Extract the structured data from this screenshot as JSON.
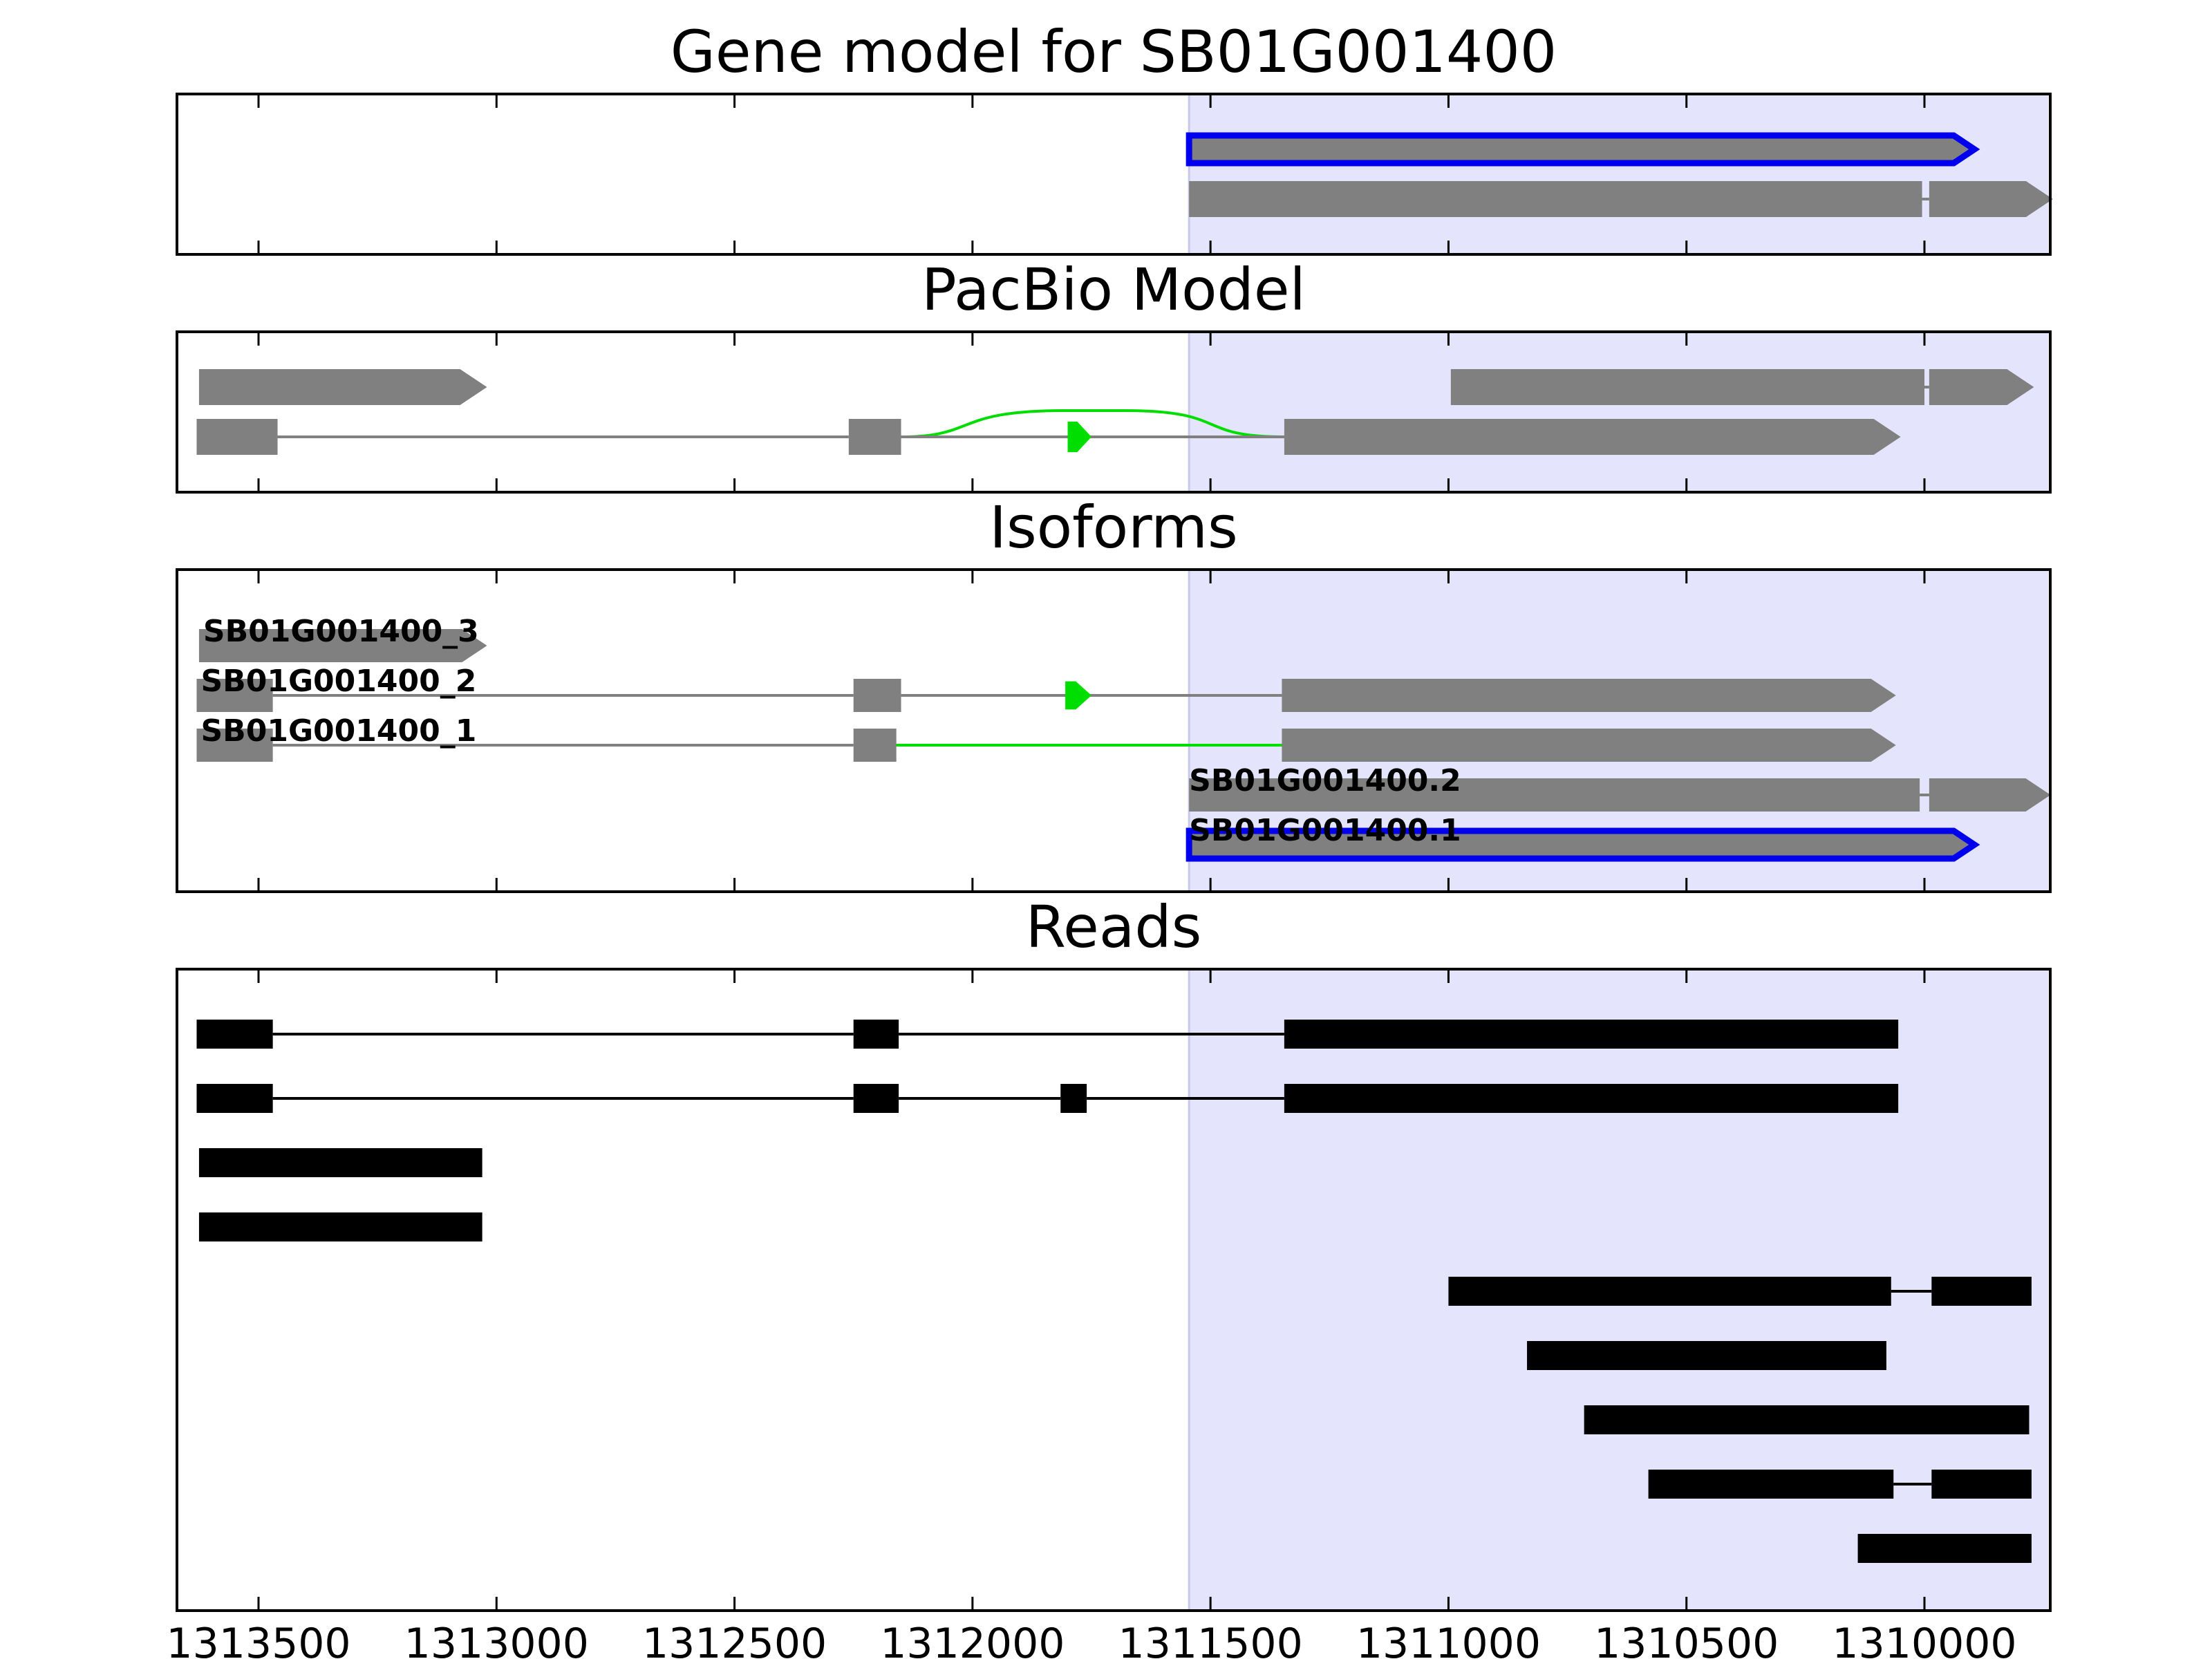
{
  "figure": {
    "x_axis": {
      "reversed": true,
      "ticks": [
        1313500,
        1313000,
        1312500,
        1312000,
        1311500,
        1311000,
        1310500,
        1310000
      ],
      "tick_labels": [
        "1313500",
        "1313000",
        "1312500",
        "1312000",
        "1311500",
        "1311000",
        "1310500",
        "1310000"
      ]
    },
    "highlight_region": {
      "start": 1311545,
      "end": 1309740,
      "color": "#e4e4fc"
    },
    "colors": {
      "feature": "#808080",
      "novel": "#00dd00",
      "selected_outline": "#0000ee",
      "read": "#000000",
      "intron": "#808080"
    }
  },
  "panels": {
    "gene_model": {
      "title": "Gene model for SB01G001400",
      "transcripts": [
        {
          "exons": [
            [
              1311545,
              1309895
            ]
          ],
          "direction": "minus",
          "selected": true
        },
        {
          "exons": [
            [
              1311545,
              1310005
            ],
            [
              1309990,
              1309730
            ]
          ],
          "direction": "minus"
        }
      ]
    },
    "pacbio_model": {
      "title": "PacBio Model",
      "transcripts": [
        {
          "exons": [
            [
              1313625,
              1313020
            ]
          ],
          "direction": "minus"
        },
        {
          "exons": [
            [
              1310995,
              1310000
            ],
            [
              1309990,
              1309770
            ]
          ],
          "direction": "minus"
        },
        {
          "exons": [
            [
              1313630,
              1313460
            ],
            [
              1312260,
              1312150
            ],
            [
              1311345,
              1310050
            ]
          ],
          "direction": "minus",
          "novel_exon": [
            1311800,
            1311750
          ]
        }
      ]
    },
    "isoforms": {
      "title": "Isoforms",
      "transcripts": [
        {
          "label": "SB01G001400_3",
          "exons": [
            [
              1313625,
              1313020
            ]
          ],
          "direction": "minus"
        },
        {
          "label": "SB01G001400_2",
          "exons": [
            [
              1313630,
              1313470
            ],
            [
              1312250,
              1312150
            ],
            [
              1311350,
              1310060
            ]
          ],
          "direction": "minus",
          "novel_exon": [
            1311805,
            1311750
          ]
        },
        {
          "label": "SB01G001400_1",
          "exons": [
            [
              1313630,
              1313470
            ],
            [
              1312250,
              1312160
            ],
            [
              1311350,
              1310060
            ]
          ],
          "direction": "minus",
          "novel_junction": [
            1312160,
            1311350
          ]
        },
        {
          "label": "SB01G001400.2",
          "exons": [
            [
              1311545,
              1310010
            ],
            [
              1309990,
              1309735
            ]
          ],
          "direction": "minus"
        },
        {
          "label": "SB01G001400.1",
          "exons": [
            [
              1311545,
              1309895
            ]
          ],
          "direction": "minus",
          "selected": true
        }
      ]
    },
    "reads": {
      "title": "Reads",
      "reads": [
        [
          [
            1313630,
            1313470
          ],
          [
            1312250,
            1312155
          ],
          [
            1311345,
            1310055
          ]
        ],
        [
          [
            1313630,
            1313470
          ],
          [
            1312250,
            1312155
          ],
          [
            1311815,
            1311760
          ],
          [
            1311345,
            1310055
          ]
        ],
        [
          [
            1313625,
            1313030
          ]
        ],
        [
          [
            1313625,
            1313030
          ]
        ],
        [
          [
            1311000,
            1310070
          ],
          [
            1309985,
            1309775
          ]
        ],
        [
          [
            1310835,
            1310080
          ]
        ],
        [
          [
            1310715,
            1309780
          ]
        ],
        [
          [
            1310580,
            1310065
          ],
          [
            1309985,
            1309775
          ]
        ],
        [
          [
            1310140,
            1309775
          ]
        ]
      ]
    }
  }
}
